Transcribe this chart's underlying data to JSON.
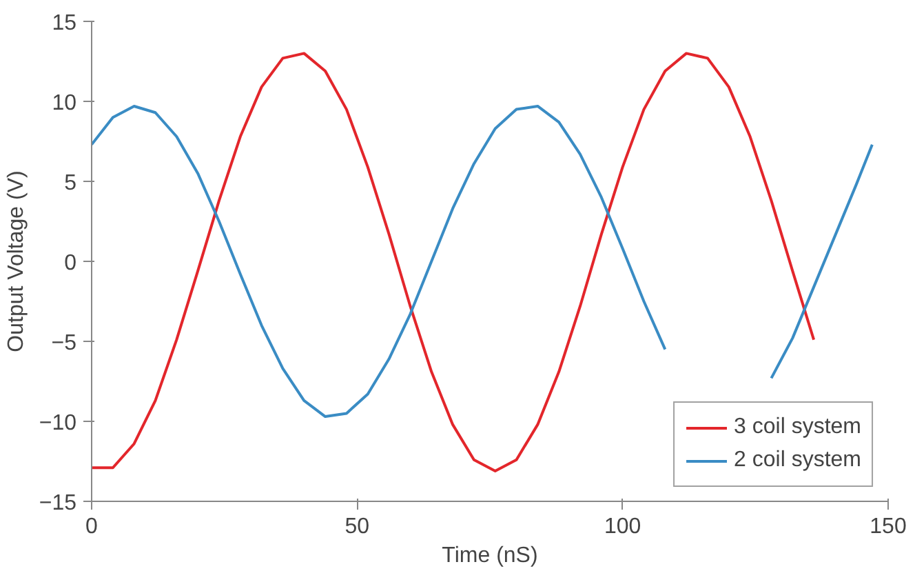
{
  "chart_data": {
    "type": "line",
    "xlabel": "Time (nS)",
    "ylabel": "Output Voltage (V)",
    "x": [
      0,
      4,
      8,
      12,
      16,
      20,
      24,
      28,
      32,
      36,
      40,
      44,
      48,
      52,
      56,
      60,
      64,
      68,
      72,
      76,
      80,
      84,
      88,
      92,
      96,
      100,
      104,
      108,
      112,
      116,
      120,
      124,
      128,
      132,
      136,
      140,
      144,
      147
    ],
    "series": [
      {
        "name": "3 coil system",
        "color": "#e3262b",
        "values": [
          -12.9,
          -12.9,
          -11.4,
          -8.7,
          -4.9,
          -0.6,
          3.8,
          7.8,
          10.9,
          12.7,
          13.0,
          11.9,
          9.5,
          5.9,
          1.7,
          -2.8,
          -6.9,
          -10.2,
          -12.4,
          -13.1,
          -12.4,
          -10.2,
          -6.9,
          -2.8,
          1.7,
          5.9,
          9.5,
          11.9,
          13.0,
          12.7,
          10.9,
          7.8,
          3.8,
          -0.6,
          -4.9,
          null,
          null,
          null
        ]
      },
      {
        "name": "2 coil system",
        "color": "#3a8cc4",
        "values": [
          7.3,
          9.0,
          9.7,
          9.3,
          7.8,
          5.5,
          2.5,
          -0.8,
          -4.0,
          -6.7,
          -8.7,
          -9.7,
          -9.5,
          -8.3,
          -6.1,
          -3.3,
          0,
          3.3,
          6.1,
          8.3,
          9.5,
          9.7,
          8.7,
          6.7,
          4.0,
          0.8,
          -2.5,
          -5.5,
          null,
          null,
          null,
          null,
          -7.3,
          -4.8,
          -1.6,
          1.6,
          4.8,
          7.3
        ]
      }
    ],
    "xlim": [
      0,
      150
    ],
    "xticks": [
      0,
      50,
      100,
      150
    ],
    "ylim": [
      -15,
      15
    ],
    "yticks": [
      -15,
      -10,
      -5,
      0,
      5,
      10,
      15
    ],
    "grid": false,
    "legend": "bottom right",
    "marker": "none",
    "line_style": "solid"
  }
}
